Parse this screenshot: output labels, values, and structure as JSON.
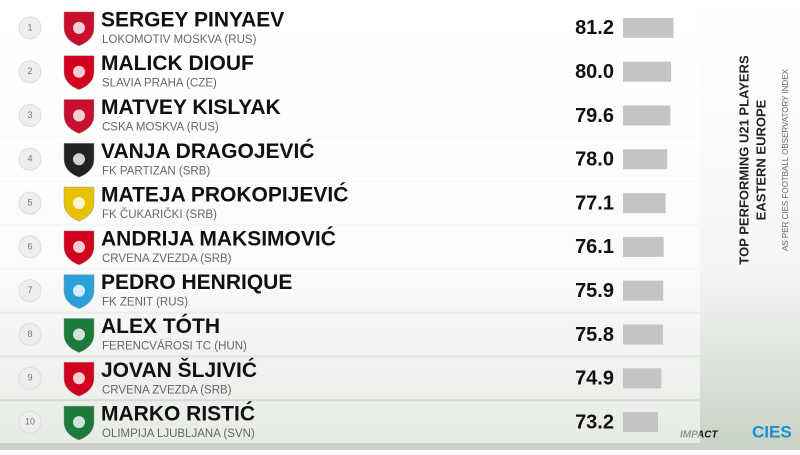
{
  "chart_data": {
    "type": "bar",
    "orientation": "horizontal",
    "title": "TOP PERFORMING U21 PLAYERS",
    "subtitle": "EASTERN EUROPE",
    "note": "AS PER CIES FOOTBALL OBSERVATORY INDEX",
    "brands": [
      "IMPACT",
      "CIES"
    ],
    "ranks": [
      1,
      2,
      3,
      4,
      5,
      6,
      7,
      8,
      9,
      10
    ],
    "categories": [
      "SERGEY PINYAEV",
      "MALICK DIOUF",
      "MATVEY KISLYAK",
      "VANJA DRAGOJEVIĆ",
      "MATEJA PROKOPIJEVIĆ",
      "ANDRIJA MAKSIMOVIĆ",
      "PEDRO HENRIQUE",
      "ALEX TÓTH",
      "JOVAN ŠLJIVIĆ",
      "MARKO RISTIĆ"
    ],
    "clubs": [
      "LOKOMOTIV MOSKVA (RUS)",
      "SLAVIA PRAHA (CZE)",
      "CSKA MOSKVA (RUS)",
      "FK PARTIZAN (SRB)",
      "FK ČUKARIČKI (SRB)",
      "CRVENA ZVEZDA (SRB)",
      "FK ZENIT (RUS)",
      "FERENCVÁROSI TC (HUN)",
      "CRVENA ZVEZDA (SRB)",
      "OLIMPIJA LJUBLJANA (SVN)"
    ],
    "values": [
      81.2,
      80.0,
      79.6,
      78.0,
      77.1,
      76.1,
      75.9,
      75.8,
      74.9,
      73.2
    ],
    "value_labels": [
      "81.2",
      "80.0",
      "79.6",
      "78.0",
      "77.1",
      "76.1",
      "75.9",
      "75.8",
      "74.9",
      "73.2"
    ],
    "xlim": [
      55,
      82
    ],
    "color": "#c4c4c4"
  }
}
